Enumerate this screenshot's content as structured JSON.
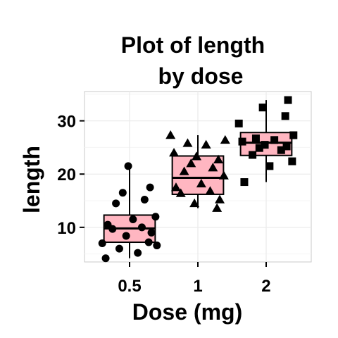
{
  "chart_data": {
    "type": "box",
    "title_lines": [
      "Plot of length",
      "by dose"
    ],
    "xlabel": "Dose (mg)",
    "ylabel": "length",
    "categories": [
      "0.5",
      "1",
      "2"
    ],
    "y_ticks": [
      10,
      20,
      30
    ],
    "ylim": [
      3.5,
      35.5
    ],
    "grid": true,
    "box_fill": "#FFB6C1",
    "boxes": [
      {
        "category": "0.5",
        "lower_whisker": 4.2,
        "q1": 7.2,
        "median": 9.8,
        "q3": 12.3,
        "upper_whisker": 21.5
      },
      {
        "category": "1",
        "lower_whisker": 13.6,
        "q1": 16.2,
        "median": 19.3,
        "q3": 23.4,
        "upper_whisker": 27.3
      },
      {
        "category": "2",
        "lower_whisker": 18.5,
        "q1": 23.5,
        "median": 25.9,
        "q3": 27.8,
        "upper_whisker": 33.9
      }
    ],
    "points": [
      {
        "category": "0.5",
        "marker": "circle",
        "values": [
          4.2,
          5.2,
          6.0,
          6.6,
          7.0,
          7.2,
          8.4,
          9.0,
          9.7,
          10.0,
          10.5,
          11.5,
          12.0,
          14.5,
          15.2,
          16.5,
          17.5,
          21.5
        ]
      },
      {
        "category": "1",
        "marker": "triangle",
        "values": [
          13.6,
          14.5,
          15.2,
          16.4,
          16.8,
          17.5,
          18.2,
          19.7,
          20.5,
          21.2,
          22.0,
          22.7,
          23.3,
          24.0,
          25.5,
          25.8,
          26.4,
          27.3
        ]
      },
      {
        "category": "2",
        "marker": "square",
        "values": [
          18.5,
          21.5,
          22.4,
          23.6,
          24.5,
          24.9,
          25.2,
          25.5,
          26.1,
          26.4,
          26.7,
          27.3,
          29.5,
          30.9,
          32.5,
          33.9
        ]
      }
    ]
  }
}
